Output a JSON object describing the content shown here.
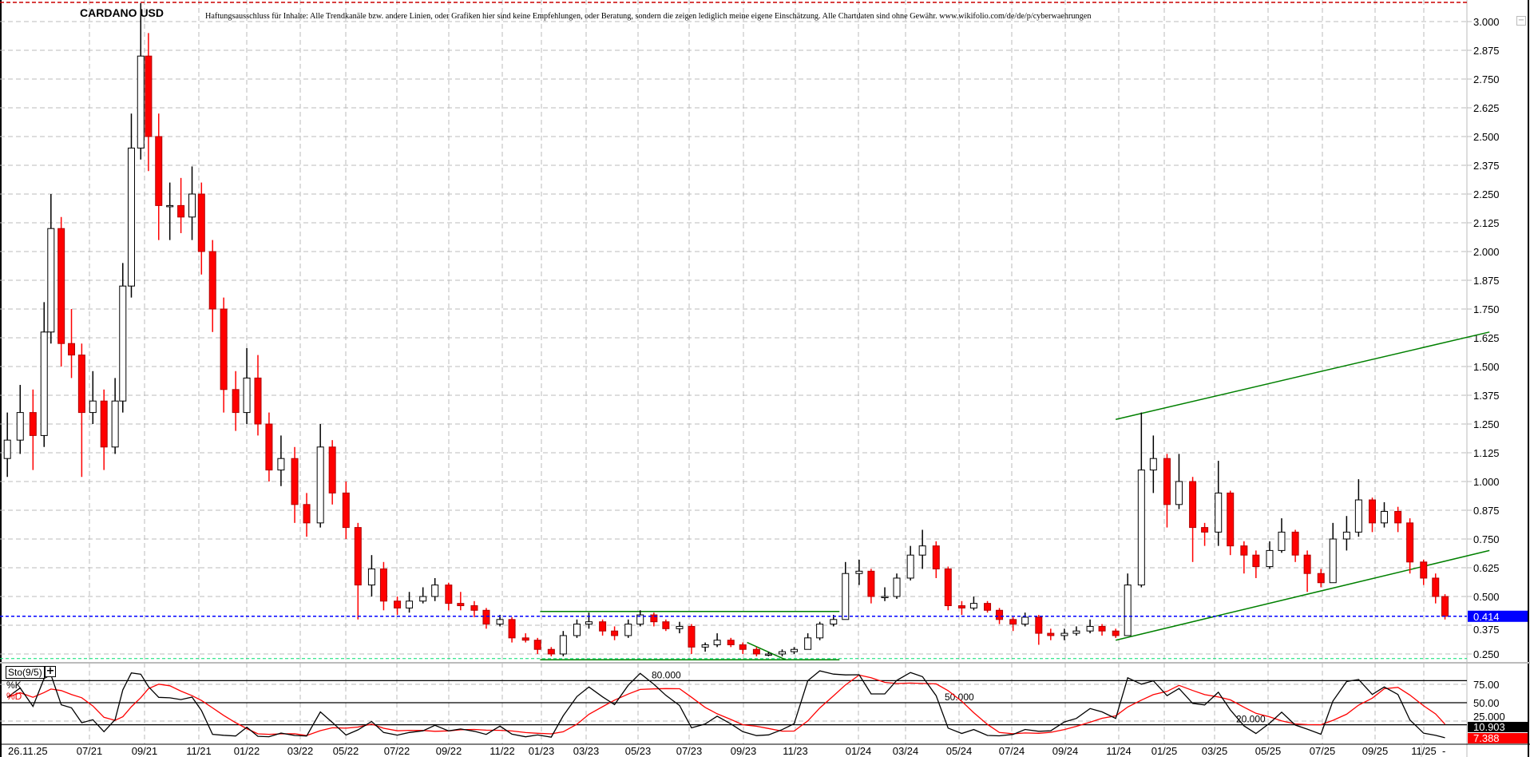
{
  "header": {
    "title": "CARDANO USD",
    "disclaimer": "Haftungsausschluss für Inhalte: Alle Trendkanäle bzw. andere Linien, oder Grafiken hier sind keine Empfehlungen, oder Beratung, sondern die zeigen lediglich meine eigene Einschätzung. Alle Chartdaten sind ohne Gewähr.  www.wikifolio.com/de/de/p/cyberwaehrungen"
  },
  "indicator": {
    "label": "Sto(9/5)",
    "add_icon": "plus-icon",
    "k_label": "%K",
    "d_label": "%D"
  },
  "colors": {
    "up": "#000000",
    "down": "#ff0000",
    "trendline": "#008000",
    "last_price": "#0000ff",
    "k_line": "#000000",
    "d_line": "#ff0000"
  },
  "chart_data": {
    "type": "candlestick",
    "title": "CARDANO USD",
    "ylim": [
      0.2,
      3.08
    ],
    "grid": true,
    "y_ticks": [
      "3.000",
      "2.875",
      "2.750",
      "2.625",
      "2.500",
      "2.375",
      "2.250",
      "2.125",
      "2.000",
      "1.875",
      "1.750",
      "1.625",
      "1.500",
      "1.375",
      "1.250",
      "1.125",
      "1.000",
      "0.875",
      "0.750",
      "0.625",
      "0.500",
      "0.375",
      "0.250"
    ],
    "x_ticks": [
      "07/21",
      "09/21",
      "11/21",
      "01/22",
      "03/22",
      "05/22",
      "07/22",
      "09/22",
      "11/22",
      "01/23",
      "03/23",
      "05/23",
      "07/23",
      "09/23",
      "11/23",
      "01/24",
      "03/24",
      "05/24",
      "07/24",
      "09/24",
      "11/24",
      "01/25",
      "03/25",
      "05/25",
      "07/25",
      "09/25",
      "11/25"
    ],
    "cursor_date": "26.11.25",
    "last_price": 0.414,
    "last_price_label": "0.414",
    "support_level": 0.23,
    "resistance_level": 3.08,
    "candles": [
      [
        "2021-03-25",
        1.1,
        1.3,
        1.02,
        1.18
      ],
      [
        "2021-04-10",
        1.18,
        1.42,
        1.12,
        1.3
      ],
      [
        "2021-04-25",
        1.3,
        1.4,
        1.05,
        1.2
      ],
      [
        "2021-05-08",
        1.2,
        1.78,
        1.15,
        1.65
      ],
      [
        "2021-05-16",
        1.65,
        2.25,
        1.6,
        2.1
      ],
      [
        "2021-05-28",
        2.1,
        2.15,
        1.5,
        1.6
      ],
      [
        "2021-06-10",
        1.6,
        1.75,
        1.45,
        1.55
      ],
      [
        "2021-06-22",
        1.55,
        1.6,
        1.02,
        1.3
      ],
      [
        "2021-07-05",
        1.3,
        1.48,
        1.25,
        1.35
      ],
      [
        "2021-07-18",
        1.35,
        1.4,
        1.05,
        1.15
      ],
      [
        "2021-08-01",
        1.15,
        1.45,
        1.12,
        1.35
      ],
      [
        "2021-08-10",
        1.35,
        1.95,
        1.3,
        1.85
      ],
      [
        "2021-08-20",
        1.85,
        2.6,
        1.8,
        2.45
      ],
      [
        "2021-09-01",
        2.45,
        3.08,
        2.4,
        2.85
      ],
      [
        "2021-09-10",
        2.85,
        2.95,
        2.35,
        2.5
      ],
      [
        "2021-09-22",
        2.5,
        2.6,
        2.05,
        2.2
      ],
      [
        "2021-10-05",
        2.2,
        2.3,
        2.05,
        2.2
      ],
      [
        "2021-10-18",
        2.2,
        2.32,
        2.08,
        2.15
      ],
      [
        "2021-11-01",
        2.15,
        2.37,
        2.05,
        2.25
      ],
      [
        "2021-11-12",
        2.25,
        2.3,
        1.9,
        2.0
      ],
      [
        "2021-11-25",
        2.0,
        2.05,
        1.65,
        1.75
      ],
      [
        "2021-12-08",
        1.75,
        1.8,
        1.3,
        1.4
      ],
      [
        "2021-12-22",
        1.4,
        1.48,
        1.22,
        1.3
      ],
      [
        "2022-01-05",
        1.3,
        1.58,
        1.25,
        1.45
      ],
      [
        "2022-01-18",
        1.45,
        1.55,
        1.2,
        1.25
      ],
      [
        "2022-02-01",
        1.25,
        1.3,
        1.0,
        1.05
      ],
      [
        "2022-02-15",
        1.05,
        1.2,
        0.98,
        1.1
      ],
      [
        "2022-03-01",
        1.1,
        1.15,
        0.82,
        0.9
      ],
      [
        "2022-03-15",
        0.9,
        0.95,
        0.76,
        0.82
      ],
      [
        "2022-04-01",
        0.82,
        1.25,
        0.8,
        1.15
      ],
      [
        "2022-04-15",
        1.15,
        1.18,
        0.9,
        0.95
      ],
      [
        "2022-05-01",
        0.95,
        1.0,
        0.75,
        0.8
      ],
      [
        "2022-05-15",
        0.8,
        0.82,
        0.4,
        0.55
      ],
      [
        "2022-06-01",
        0.55,
        0.68,
        0.5,
        0.62
      ],
      [
        "2022-06-15",
        0.62,
        0.65,
        0.44,
        0.48
      ],
      [
        "2022-07-01",
        0.48,
        0.5,
        0.42,
        0.45
      ],
      [
        "2022-07-15",
        0.45,
        0.52,
        0.43,
        0.48
      ],
      [
        "2022-08-01",
        0.48,
        0.54,
        0.47,
        0.5
      ],
      [
        "2022-08-15",
        0.5,
        0.58,
        0.48,
        0.55
      ],
      [
        "2022-09-01",
        0.55,
        0.56,
        0.44,
        0.47
      ],
      [
        "2022-09-15",
        0.47,
        0.52,
        0.44,
        0.46
      ],
      [
        "2022-10-01",
        0.46,
        0.48,
        0.41,
        0.44
      ],
      [
        "2022-10-15",
        0.44,
        0.45,
        0.36,
        0.38
      ],
      [
        "2022-11-01",
        0.38,
        0.42,
        0.37,
        0.4
      ],
      [
        "2022-11-15",
        0.4,
        0.41,
        0.3,
        0.32
      ],
      [
        "2022-12-01",
        0.32,
        0.34,
        0.3,
        0.31
      ],
      [
        "2022-12-15",
        0.31,
        0.32,
        0.25,
        0.27
      ],
      [
        "2023-01-01",
        0.27,
        0.28,
        0.24,
        0.25
      ],
      [
        "2023-01-15",
        0.25,
        0.35,
        0.24,
        0.33
      ],
      [
        "2023-02-01",
        0.33,
        0.4,
        0.32,
        0.38
      ],
      [
        "2023-02-15",
        0.38,
        0.43,
        0.36,
        0.39
      ],
      [
        "2023-03-01",
        0.39,
        0.4,
        0.33,
        0.35
      ],
      [
        "2023-03-15",
        0.35,
        0.37,
        0.31,
        0.33
      ],
      [
        "2023-04-01",
        0.33,
        0.4,
        0.32,
        0.38
      ],
      [
        "2023-04-15",
        0.38,
        0.44,
        0.37,
        0.42
      ],
      [
        "2023-05-01",
        0.42,
        0.43,
        0.37,
        0.39
      ],
      [
        "2023-05-15",
        0.39,
        0.4,
        0.35,
        0.36
      ],
      [
        "2023-06-01",
        0.36,
        0.39,
        0.34,
        0.37
      ],
      [
        "2023-06-15",
        0.37,
        0.38,
        0.25,
        0.28
      ],
      [
        "2023-07-01",
        0.28,
        0.3,
        0.26,
        0.29
      ],
      [
        "2023-07-15",
        0.29,
        0.34,
        0.28,
        0.31
      ],
      [
        "2023-08-01",
        0.31,
        0.32,
        0.28,
        0.29
      ],
      [
        "2023-08-15",
        0.29,
        0.3,
        0.25,
        0.27
      ],
      [
        "2023-09-01",
        0.27,
        0.28,
        0.24,
        0.25
      ],
      [
        "2023-09-15",
        0.25,
        0.26,
        0.24,
        0.25
      ],
      [
        "2023-10-01",
        0.25,
        0.27,
        0.24,
        0.26
      ],
      [
        "2023-10-15",
        0.26,
        0.28,
        0.25,
        0.27
      ],
      [
        "2023-11-01",
        0.27,
        0.34,
        0.27,
        0.32
      ],
      [
        "2023-11-15",
        0.32,
        0.39,
        0.31,
        0.38
      ],
      [
        "2023-12-01",
        0.38,
        0.42,
        0.37,
        0.4
      ],
      [
        "2023-12-15",
        0.4,
        0.65,
        0.4,
        0.6
      ],
      [
        "2024-01-01",
        0.6,
        0.66,
        0.55,
        0.61
      ],
      [
        "2024-01-15",
        0.61,
        0.62,
        0.47,
        0.5
      ],
      [
        "2024-02-01",
        0.5,
        0.54,
        0.48,
        0.5
      ],
      [
        "2024-02-15",
        0.5,
        0.6,
        0.49,
        0.58
      ],
      [
        "2024-03-01",
        0.58,
        0.72,
        0.57,
        0.68
      ],
      [
        "2024-03-15",
        0.68,
        0.79,
        0.62,
        0.72
      ],
      [
        "2024-04-01",
        0.72,
        0.74,
        0.58,
        0.62
      ],
      [
        "2024-04-15",
        0.62,
        0.63,
        0.44,
        0.46
      ],
      [
        "2024-05-01",
        0.46,
        0.48,
        0.42,
        0.45
      ],
      [
        "2024-05-15",
        0.45,
        0.5,
        0.44,
        0.47
      ],
      [
        "2024-06-01",
        0.47,
        0.48,
        0.43,
        0.44
      ],
      [
        "2024-06-15",
        0.44,
        0.45,
        0.38,
        0.4
      ],
      [
        "2024-07-01",
        0.4,
        0.41,
        0.35,
        0.38
      ],
      [
        "2024-07-15",
        0.38,
        0.43,
        0.37,
        0.41
      ],
      [
        "2024-08-01",
        0.41,
        0.42,
        0.29,
        0.34
      ],
      [
        "2024-08-15",
        0.34,
        0.36,
        0.31,
        0.33
      ],
      [
        "2024-09-01",
        0.33,
        0.36,
        0.31,
        0.34
      ],
      [
        "2024-09-15",
        0.34,
        0.37,
        0.33,
        0.35
      ],
      [
        "2024-10-01",
        0.35,
        0.4,
        0.34,
        0.37
      ],
      [
        "2024-10-15",
        0.37,
        0.38,
        0.33,
        0.35
      ],
      [
        "2024-11-01",
        0.35,
        0.36,
        0.32,
        0.33
      ],
      [
        "2024-11-15",
        0.33,
        0.6,
        0.33,
        0.55
      ],
      [
        "2024-12-01",
        0.55,
        1.3,
        0.54,
        1.05
      ],
      [
        "2024-12-15",
        1.05,
        1.2,
        0.95,
        1.1
      ],
      [
        "2025-01-01",
        1.1,
        1.12,
        0.8,
        0.9
      ],
      [
        "2025-01-15",
        0.9,
        1.12,
        0.88,
        1.0
      ],
      [
        "2025-02-01",
        1.0,
        1.02,
        0.65,
        0.8
      ],
      [
        "2025-02-15",
        0.8,
        0.82,
        0.72,
        0.78
      ],
      [
        "2025-03-01",
        0.78,
        1.09,
        0.72,
        0.95
      ],
      [
        "2025-03-15",
        0.95,
        0.96,
        0.68,
        0.72
      ],
      [
        "2025-04-01",
        0.72,
        0.74,
        0.6,
        0.68
      ],
      [
        "2025-04-15",
        0.68,
        0.7,
        0.58,
        0.63
      ],
      [
        "2025-05-01",
        0.63,
        0.74,
        0.62,
        0.7
      ],
      [
        "2025-05-15",
        0.7,
        0.84,
        0.69,
        0.78
      ],
      [
        "2025-06-01",
        0.78,
        0.79,
        0.65,
        0.68
      ],
      [
        "2025-06-15",
        0.68,
        0.7,
        0.52,
        0.6
      ],
      [
        "2025-07-01",
        0.6,
        0.62,
        0.54,
        0.56
      ],
      [
        "2025-07-15",
        0.56,
        0.82,
        0.56,
        0.75
      ],
      [
        "2025-08-01",
        0.75,
        0.85,
        0.7,
        0.78
      ],
      [
        "2025-08-15",
        0.78,
        1.01,
        0.76,
        0.92
      ],
      [
        "2025-09-01",
        0.92,
        0.93,
        0.78,
        0.82
      ],
      [
        "2025-09-15",
        0.82,
        0.91,
        0.8,
        0.87
      ],
      [
        "2025-10-01",
        0.87,
        0.89,
        0.78,
        0.82
      ],
      [
        "2025-10-15",
        0.82,
        0.84,
        0.6,
        0.65
      ],
      [
        "2025-11-01",
        0.65,
        0.66,
        0.55,
        0.58
      ],
      [
        "2025-11-15",
        0.58,
        0.6,
        0.47,
        0.5
      ],
      [
        "2025-11-26",
        0.5,
        0.51,
        0.4,
        0.414
      ]
    ],
    "trendlines": [
      {
        "from": [
          "2024-11-01",
          1.27
        ],
        "to": [
          "2026-01-18",
          1.65
        ]
      },
      {
        "from": [
          "2024-11-01",
          0.31
        ],
        "to": [
          "2026-01-18",
          0.7
        ]
      },
      {
        "from": [
          "2022-12-18",
          0.435
        ],
        "to": [
          "2023-12-08",
          0.435
        ]
      },
      {
        "from": [
          "2022-12-18",
          0.225
        ],
        "to": [
          "2023-12-08",
          0.225
        ]
      },
      {
        "from": [
          "2023-08-20",
          0.3
        ],
        "to": [
          "2023-10-05",
          0.225
        ]
      }
    ],
    "stochastic": {
      "k_period": 9,
      "d_period": 5,
      "levels": [
        80,
        50,
        20
      ],
      "level_labels": [
        "80.000",
        "50.000",
        "20.000"
      ],
      "y_ticks": [
        "75.00",
        "50.00",
        "25.000"
      ],
      "last_k": 10.903,
      "last_k_label": "10.903",
      "last_d": 7.388,
      "last_d_label": "7.388",
      "ylim": [
        0,
        100
      ]
    }
  }
}
